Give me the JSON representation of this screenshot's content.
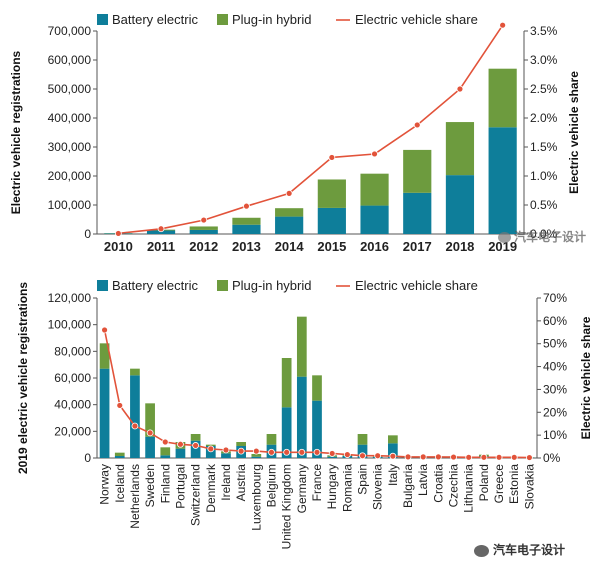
{
  "chart_data": [
    {
      "type": "bar",
      "stacked": true,
      "legend": [
        "Battery electric",
        "Plug-in hybrid",
        "Electric vehicle share"
      ],
      "legend_placement": "top-left",
      "ylabel": "Electric vehicle registrations",
      "y2label": "Electric vehicle  share",
      "categories": [
        "2010",
        "2011",
        "2012",
        "2013",
        "2014",
        "2015",
        "2016",
        "2017",
        "2018",
        "2019"
      ],
      "ylim": [
        0,
        700000
      ],
      "yticks": [
        "0",
        "100,000",
        "200,000",
        "300,000",
        "400,000",
        "500,000",
        "600,000",
        "700,000"
      ],
      "y2lim": [
        0,
        3.5
      ],
      "y2ticks": [
        "0.0%",
        "0.5%",
        "1.0%",
        "1.5%",
        "2.0%",
        "2.5%",
        "3.0%",
        "3.5%"
      ],
      "series": [
        {
          "name": "Battery electric",
          "values": [
            2000,
            12000,
            14000,
            32000,
            60000,
            90000,
            98000,
            142000,
            203000,
            368000
          ]
        },
        {
          "name": "Plug-in hybrid",
          "values": [
            1000,
            3000,
            12000,
            24000,
            29000,
            98000,
            110000,
            148000,
            183000,
            202000
          ]
        },
        {
          "name": "Electric vehicle share",
          "axis": "right",
          "values": [
            0.01,
            0.09,
            0.24,
            0.48,
            0.7,
            1.32,
            1.38,
            1.88,
            2.5,
            3.6
          ]
        }
      ],
      "colors": {
        "Battery electric": "#0e7e9a",
        "Plug-in hybrid": "#6d9b3e",
        "Electric vehicle share": "#e2533a"
      },
      "grid": false
    },
    {
      "type": "bar",
      "stacked": true,
      "legend": [
        "Battery electric",
        "Plug-in hybrid",
        "Electric vehicle share"
      ],
      "legend_placement": "top-left",
      "ylabel": "2019 electric vehicle registrations",
      "y2label": "Electric vehicle share",
      "categories": [
        "Norway",
        "Iceland",
        "Netherlands",
        "Sweden",
        "Finland",
        "Portugal",
        "Switzerland",
        "Denmark",
        "Ireland",
        "Austria",
        "Luxembourg",
        "Belgium",
        "United Kingdom",
        "Germany",
        "France",
        "Hungary",
        "Romania",
        "Spain",
        "Slovenia",
        "Italy",
        "Bulgaria",
        "Latvia",
        "Croatia",
        "Czechia",
        "Lithuania",
        "Poland",
        "Greece",
        "Estonia",
        "Slovakia"
      ],
      "ylim": [
        0,
        120000
      ],
      "yticks": [
        "0",
        "20,000",
        "40,000",
        "60,000",
        "80,000",
        "100,000",
        "120,000"
      ],
      "y2lim": [
        0,
        70
      ],
      "y2ticks": [
        "0%",
        "10%",
        "20%",
        "30%",
        "40%",
        "50%",
        "60%",
        "70%"
      ],
      "series": [
        {
          "name": "Battery electric",
          "values": [
            67000,
            1500,
            62000,
            16000,
            2000,
            7000,
            13000,
            9000,
            3500,
            9000,
            1000,
            10000,
            38000,
            61000,
            43000,
            1000,
            1500,
            10000,
            900,
            11000,
            200,
            300,
            300,
            700,
            400,
            1500,
            400,
            100,
            300
          ]
        },
        {
          "name": "Plug-in hybrid",
          "values": [
            19000,
            2500,
            5000,
            25000,
            6000,
            5000,
            5000,
            1000,
            1500,
            3000,
            2000,
            8000,
            37000,
            45000,
            19000,
            1000,
            500,
            8000,
            300,
            6000,
            100,
            200,
            100,
            500,
            300,
            1000,
            300,
            200,
            200
          ]
        },
        {
          "name": "Electric vehicle share",
          "axis": "right",
          "values": [
            56,
            23,
            14,
            11,
            7,
            6,
            5.5,
            4,
            3.5,
            3,
            3,
            2.5,
            2.5,
            2.5,
            2.5,
            2,
            1.5,
            1,
            1,
            0.8,
            0.5,
            0.5,
            0.5,
            0.4,
            0.3,
            0.3,
            0.3,
            0.3,
            0.2
          ]
        }
      ],
      "colors": {
        "Battery electric": "#0e7e9a",
        "Plug-in hybrid": "#6d9b3e",
        "Electric vehicle share": "#e2533a"
      },
      "grid": false
    }
  ],
  "watermark": {
    "text": "汽车电子设计"
  }
}
